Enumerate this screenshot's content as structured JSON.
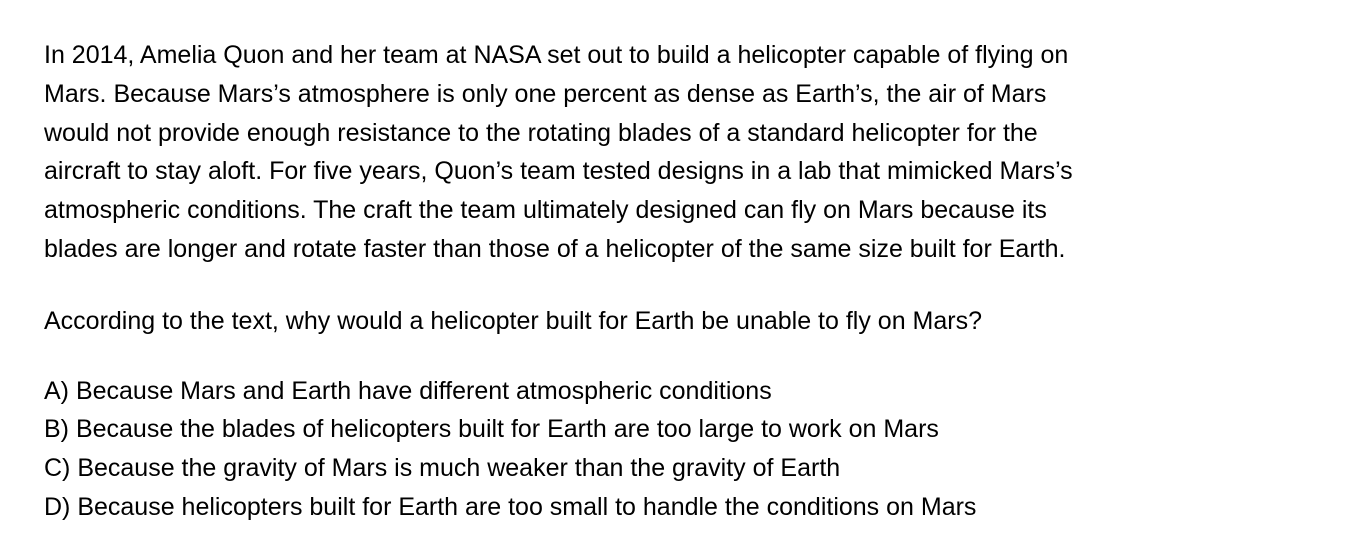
{
  "passage": {
    "lines": [
      "In 2014, Amelia Quon and her team at NASA set out to build a helicopter capable of flying on",
      "Mars. Because Mars’s atmosphere is only one percent as dense as Earth’s, the air of Mars",
      "would not provide enough resistance to the rotating blades of a standard helicopter for the",
      "aircraft to stay aloft. For five years, Quon’s team tested designs in a lab that mimicked Mars’s",
      "atmospheric conditions. The craft the team ultimately designed can fly on Mars because its",
      "blades are longer and rotate faster than those of a helicopter of the same size built for Earth."
    ]
  },
  "question": {
    "text": "According to the text, why would a helicopter built for Earth be unable to fly on Mars?"
  },
  "choices": [
    "A) Because Mars and Earth have different atmospheric conditions",
    "B) Because the blades of helicopters built for Earth are too large to work on Mars",
    "C) Because the gravity of Mars is much weaker than the gravity of Earth",
    "D) Because helicopters built for Earth are too small to handle the conditions on Mars"
  ]
}
